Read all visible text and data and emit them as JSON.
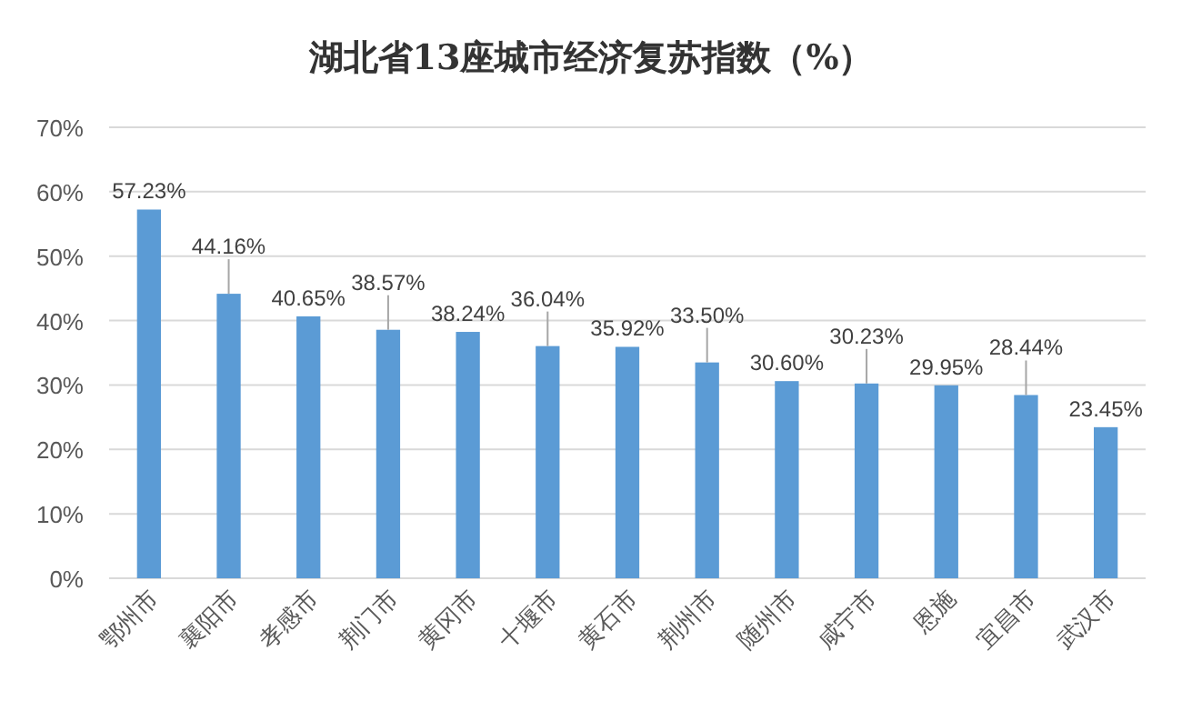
{
  "chart_data": {
    "type": "bar",
    "title": "湖北省13座城市经济复苏指数（%）",
    "categories": [
      "鄂州市",
      "襄阳市",
      "孝感市",
      "荆门市",
      "黄冈市",
      "十堰市",
      "黄石市",
      "荆州市",
      "随州市",
      "咸宁市",
      "恩施",
      "宜昌市",
      "武汉市"
    ],
    "values": [
      57.23,
      44.16,
      40.65,
      38.57,
      38.24,
      36.04,
      35.92,
      33.5,
      30.6,
      30.23,
      29.95,
      28.44,
      23.45
    ],
    "color": "#5b9bd5",
    "ylim": [
      0,
      70
    ],
    "yticks": [
      {
        "value": 0,
        "label": "0%"
      },
      {
        "value": 10,
        "label": "10%"
      },
      {
        "value": 20,
        "label": "20%"
      },
      {
        "value": 30,
        "label": "30%"
      },
      {
        "value": 40,
        "label": "40%"
      },
      {
        "value": 50,
        "label": "50%"
      },
      {
        "value": 60,
        "label": "60%"
      },
      {
        "value": 70,
        "label": "70%"
      }
    ],
    "value_labels": [
      "57.23%",
      "44.16%",
      "40.65%",
      "38.57%",
      "38.24%",
      "36.04%",
      "35.92%",
      "33.50%",
      "30.60%",
      "30.23%",
      "29.95%",
      "28.44%",
      "23.45%"
    ],
    "grid": "y"
  }
}
